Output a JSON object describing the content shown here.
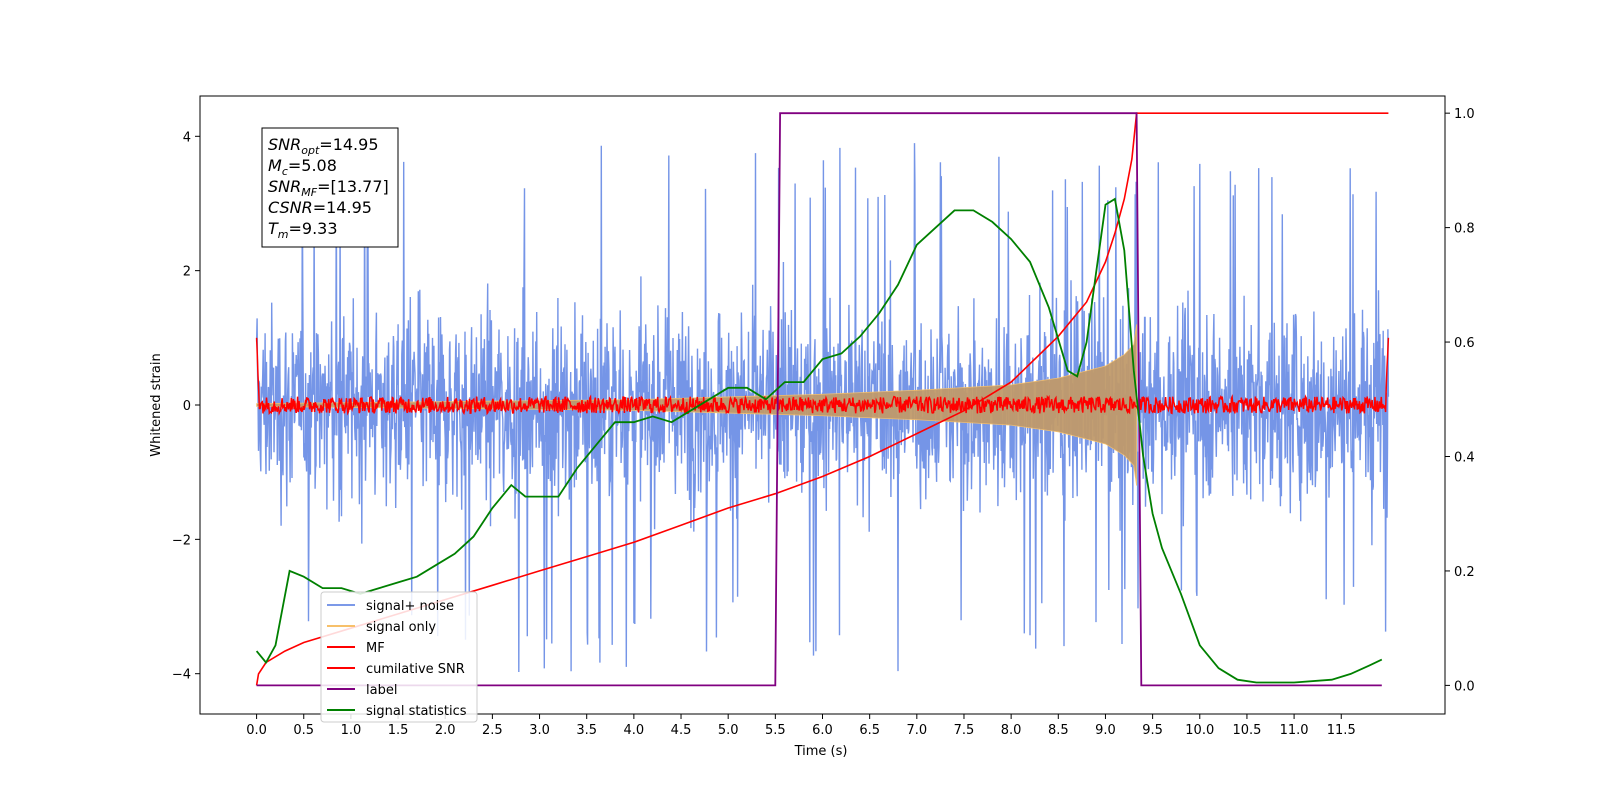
{
  "chart_data": {
    "type": "line",
    "title": "",
    "xlabel": "Time (s)",
    "ylabel": "Whitened strain",
    "xlim": [
      -0.6,
      12.6
    ],
    "ylim_left": [
      -4.6,
      4.6
    ],
    "ylim_right": [
      -0.05,
      1.03
    ],
    "grid": false,
    "legend_position": "lower-left",
    "x_ticks": [
      0.0,
      0.5,
      1.0,
      1.5,
      2.0,
      2.5,
      3.0,
      3.5,
      4.0,
      4.5,
      5.0,
      5.5,
      6.0,
      6.5,
      7.0,
      7.5,
      8.0,
      8.5,
      9.0,
      9.5,
      10.0,
      10.5,
      11.0,
      11.5
    ],
    "x_tick_labels": [
      "0.0",
      "0.5",
      "1.0",
      "1.5",
      "2.0",
      "2.5",
      "3.0",
      "3.5",
      "4.0",
      "4.5",
      "5.0",
      "5.5",
      "6.0",
      "6.5",
      "7.0",
      "7.5",
      "8.0",
      "8.5",
      "9.0",
      "9.5",
      "10.0",
      "10.5",
      "11.0",
      "11.5"
    ],
    "y_left_ticks": [
      -4,
      -2,
      0,
      2,
      4
    ],
    "y_left_tick_labels": [
      "−4",
      "−2",
      "0",
      "2",
      "4"
    ],
    "y_right_ticks": [
      0.0,
      0.2,
      0.4,
      0.6,
      0.8,
      1.0
    ],
    "y_right_tick_labels": [
      "0.0",
      "0.2",
      "0.4",
      "0.6",
      "0.8",
      "1.0"
    ],
    "series": [
      {
        "name": "signal+ noise",
        "axis": "left",
        "color": "#6e8fe6",
        "kind": "noise",
        "x_range": [
          0.0,
          12.0
        ],
        "envelope": {
          "x": [
            0,
            1,
            2,
            3,
            4,
            5,
            6,
            7,
            8,
            9,
            10,
            11,
            12
          ],
          "abs_max": [
            3.6,
            3.8,
            3.9,
            4.1,
            3.9,
            3.8,
            3.8,
            4.1,
            3.8,
            3.6,
            3.7,
            3.6,
            3.6
          ]
        }
      },
      {
        "name": "signal only",
        "axis": "left",
        "color": "#f7c06a",
        "kind": "envelope_fill",
        "fill_color": "#c09a6b",
        "x": [
          0.0,
          2.0,
          4.0,
          5.0,
          6.0,
          7.0,
          8.0,
          8.5,
          9.0,
          9.2,
          9.3,
          9.33
        ],
        "half_amplitude": [
          0.02,
          0.05,
          0.08,
          0.12,
          0.16,
          0.22,
          0.3,
          0.4,
          0.58,
          0.75,
          0.9,
          1.2
        ]
      },
      {
        "name": "MF",
        "axis": "left",
        "color": "#ff0000",
        "kind": "mf_noise",
        "x_range": [
          0.0,
          12.0
        ],
        "amplitude": 0.18,
        "edge_value": 1.0
      },
      {
        "name": "cumilative SNR",
        "axis": "right",
        "color": "#ff0000",
        "x": [
          0.0,
          0.02,
          0.1,
          0.3,
          0.5,
          1.0,
          1.5,
          2.0,
          2.5,
          3.0,
          3.5,
          4.0,
          4.5,
          5.0,
          5.5,
          6.0,
          6.5,
          7.0,
          7.5,
          8.0,
          8.5,
          8.8,
          9.0,
          9.1,
          9.2,
          9.28,
          9.33,
          9.34,
          10.0,
          11.0,
          12.0
        ],
        "y": [
          0.0,
          0.02,
          0.04,
          0.06,
          0.075,
          0.1,
          0.125,
          0.15,
          0.175,
          0.2,
          0.225,
          0.25,
          0.28,
          0.31,
          0.335,
          0.365,
          0.4,
          0.44,
          0.48,
          0.53,
          0.61,
          0.67,
          0.74,
          0.79,
          0.85,
          0.92,
          1.0,
          1.0,
          1.0,
          1.0,
          1.0
        ]
      },
      {
        "name": "label",
        "axis": "right",
        "color": "#800080",
        "x": [
          0.0,
          5.5,
          5.55,
          9.33,
          9.38,
          11.93
        ],
        "y": [
          0.0,
          0.0,
          1.0,
          1.0,
          0.0,
          0.0
        ]
      },
      {
        "name": "signal statistics",
        "axis": "right",
        "color": "#008000",
        "x": [
          0.0,
          0.1,
          0.2,
          0.35,
          0.5,
          0.7,
          0.9,
          1.1,
          1.3,
          1.5,
          1.7,
          1.9,
          2.1,
          2.3,
          2.5,
          2.7,
          2.85,
          3.0,
          3.2,
          3.4,
          3.6,
          3.8,
          4.0,
          4.2,
          4.4,
          4.6,
          4.8,
          5.0,
          5.2,
          5.4,
          5.6,
          5.8,
          6.0,
          6.2,
          6.4,
          6.6,
          6.8,
          7.0,
          7.2,
          7.4,
          7.6,
          7.8,
          8.0,
          8.2,
          8.4,
          8.6,
          8.7,
          8.8,
          8.9,
          9.0,
          9.1,
          9.2,
          9.3,
          9.4,
          9.5,
          9.6,
          9.8,
          10.0,
          10.2,
          10.4,
          10.6,
          11.0,
          11.4,
          11.6,
          11.8,
          11.93
        ],
        "y": [
          0.06,
          0.04,
          0.07,
          0.2,
          0.19,
          0.17,
          0.17,
          0.16,
          0.17,
          0.18,
          0.19,
          0.21,
          0.23,
          0.26,
          0.31,
          0.35,
          0.33,
          0.33,
          0.33,
          0.38,
          0.42,
          0.46,
          0.46,
          0.47,
          0.46,
          0.48,
          0.5,
          0.52,
          0.52,
          0.5,
          0.53,
          0.53,
          0.57,
          0.58,
          0.61,
          0.65,
          0.7,
          0.77,
          0.8,
          0.83,
          0.83,
          0.81,
          0.78,
          0.74,
          0.66,
          0.55,
          0.54,
          0.6,
          0.72,
          0.84,
          0.85,
          0.76,
          0.55,
          0.4,
          0.3,
          0.24,
          0.16,
          0.07,
          0.03,
          0.01,
          0.005,
          0.005,
          0.01,
          0.02,
          0.035,
          0.045
        ]
      }
    ],
    "annotation": {
      "lines": [
        {
          "var": "SNR",
          "sub": "opt",
          "value": "=14.95"
        },
        {
          "var": "M",
          "sub": "c",
          "value": "=5.08"
        },
        {
          "var": "SNR",
          "sub": "MF",
          "value": "=[13.77]"
        },
        {
          "var": "CSNR",
          "sub": "",
          "value": "=14.95"
        },
        {
          "var": "T",
          "sub": "m",
          "value": "=9.33"
        }
      ]
    }
  }
}
